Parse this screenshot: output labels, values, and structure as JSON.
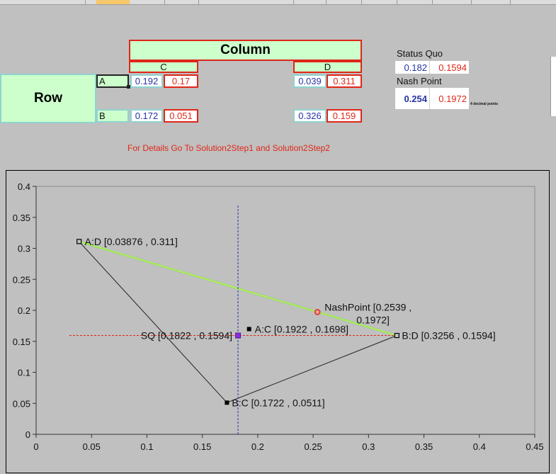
{
  "sheet": {
    "column_header": "Column",
    "row_header": "Row",
    "col_labels": [
      "C",
      "D"
    ],
    "row_labels": [
      "A",
      "B"
    ],
    "payoffs": {
      "AC": [
        "0.192",
        "0.17"
      ],
      "AD": [
        "0.039",
        "0.311"
      ],
      "BC": [
        "0.172",
        "0.051"
      ],
      "BD": [
        "0.326",
        "0.159"
      ]
    },
    "status_quo_label": "Status Quo",
    "status_quo_values": [
      "0.182",
      "0.1594"
    ],
    "nash_label": "Nash Point",
    "nash_values": [
      "0.254",
      "0.1972"
    ],
    "decimal_note": "4 decimal points",
    "details_note": "For Details Go To Solution2Step1 and Solution2Step2"
  },
  "colors": {
    "blue": "#2733a3",
    "red": "#e02618",
    "green": "#ccffcc",
    "teal": "#8fd3d0"
  },
  "chart_data": {
    "type": "scatter",
    "xlim": [
      0,
      0.45
    ],
    "ylim": [
      0,
      0.4
    ],
    "xticks": [
      "0",
      "0.05",
      "0.1",
      "0.15",
      "0.2",
      "0.25",
      "0.3",
      "0.35",
      "0.4",
      "0.45"
    ],
    "yticks": [
      "0",
      "0.05",
      "0.1",
      "0.15",
      "0.2",
      "0.25",
      "0.3",
      "0.35",
      "0.4"
    ],
    "points": [
      {
        "label": "A:D [0.03876 , 0.311]",
        "x": 0.03876,
        "y": 0.311
      },
      {
        "label": "A:C [0.1922 , 0.1698]",
        "x": 0.1922,
        "y": 0.1698
      },
      {
        "label": "B:C [0.1722 , 0.0511]",
        "x": 0.1722,
        "y": 0.0511
      },
      {
        "label": "B:D [0.3256 , 0.1594]",
        "x": 0.3256,
        "y": 0.1594
      }
    ],
    "status_quo": {
      "label": "SQ [0.1822 , 0.1594]",
      "x": 0.1822,
      "y": 0.1594
    },
    "nash": {
      "label_line1": "NashPoint [0.2539 ,",
      "label_line2": "0.1972]",
      "x": 0.2539,
      "y": 0.1972
    },
    "hull": [
      [
        0.03876,
        0.311
      ],
      [
        0.1722,
        0.0511
      ],
      [
        0.3256,
        0.1594
      ]
    ],
    "frontier": [
      [
        0.03876,
        0.311
      ],
      [
        0.3256,
        0.1594
      ]
    ],
    "sq_hline": {
      "y": 0.1594,
      "x_from": 0.03,
      "x_to": 0.3256
    },
    "sq_vline": {
      "x": 0.1822,
      "y_from": 0.0,
      "y_to": 0.37
    }
  }
}
